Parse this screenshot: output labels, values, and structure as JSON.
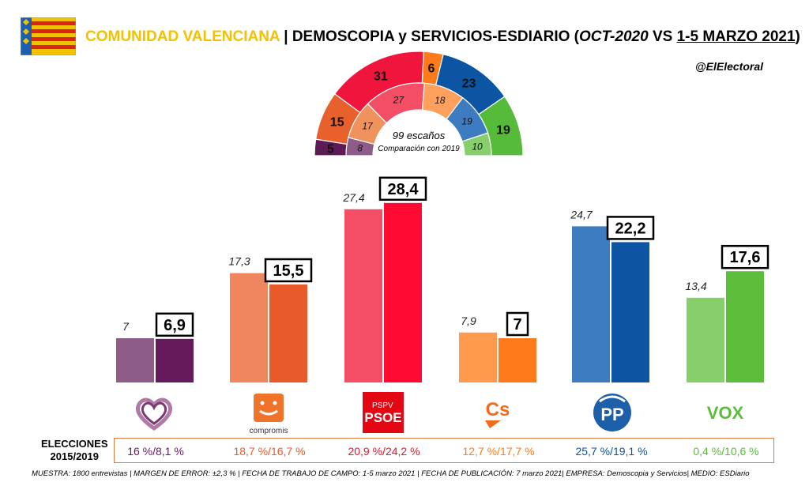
{
  "header": {
    "region": "COMUNIDAD VALENCIANA",
    "separator": "| DEMOSCOPIA y SERVICIOS-ESDIARIO",
    "paren_open": "(",
    "period_old": "OCT-2020",
    "vs": "VS",
    "period_new": "1-5 MARZO 2021",
    "paren_close": ")",
    "handle": "@ElElectoral"
  },
  "chart_data": [
    {
      "type": "pie",
      "subtype": "hemicycle",
      "center_text": "99 escaños",
      "center_subtext": "Comparación con 2019",
      "outer_ring": [
        {
          "party": "Podemos",
          "seats": 5,
          "color": "#5e1a54"
        },
        {
          "party": "Compromís",
          "seats": 15,
          "color": "#e8602c"
        },
        {
          "party": "PSOE",
          "seats": 31,
          "color": "#f0153c"
        },
        {
          "party": "Cs",
          "seats": 6,
          "color": "#ff7a1a"
        },
        {
          "party": "PP",
          "seats": 23,
          "color": "#0b55a3"
        },
        {
          "party": "VOX",
          "seats": 19,
          "color": "#57bb3a"
        }
      ],
      "inner_ring": [
        {
          "party": "Podemos",
          "seats": 8,
          "color": "#8e5c88"
        },
        {
          "party": "Compromís",
          "seats": 17,
          "color": "#f0925e"
        },
        {
          "party": "PSOE",
          "seats": 27,
          "color": "#f44d66"
        },
        {
          "party": "Cs",
          "seats": 18,
          "color": "#ffa05c"
        },
        {
          "party": "PP",
          "seats": 19,
          "color": "#3d7cc0"
        },
        {
          "party": "VOX",
          "seats": 10,
          "color": "#86cf6a"
        }
      ]
    },
    {
      "type": "bar",
      "categories": [
        "Podemos",
        "Compromís",
        "PSOE",
        "Cs",
        "PP",
        "VOX"
      ],
      "series": [
        {
          "values": [
            7,
            17.3,
            27.4,
            7.9,
            24.7,
            13.4
          ],
          "labels": [
            "7",
            "17,3",
            "27,4",
            "7,9",
            "24,7",
            "13,4"
          ],
          "colors": [
            "#8e5c88",
            "#f0865e",
            "#f44d66",
            "#ff9a4d",
            "#3d7cc0",
            "#86cf6a"
          ]
        },
        {
          "values": [
            6.9,
            15.5,
            28.4,
            7,
            22.2,
            17.6
          ],
          "labels": [
            "6,9",
            "15,5",
            "28,4",
            "7",
            "22,2",
            "17,6"
          ],
          "colors": [
            "#651a5c",
            "#e85a2a",
            "#ff0a33",
            "#ff7a1a",
            "#0b55a3",
            "#5bbd3a"
          ]
        }
      ],
      "ylim": [
        0,
        30
      ]
    }
  ],
  "logos": {
    "compromis_label": "compromis",
    "psoe_top": "PSPV",
    "psoe_bottom": "PSOE",
    "cs_label": "Cs",
    "pp_label": "PP",
    "vox_label": "VOX"
  },
  "elections": {
    "label_line1": "ELECCIONES",
    "label_line2": "2015/2019",
    "values": [
      {
        "text": "16 %/8,1 %",
        "color": "#651a5c"
      },
      {
        "text": "18,7 %/16,7 %",
        "color": "#e85a2a"
      },
      {
        "text": "20,9 %/24,2 %",
        "color": "#e8122e"
      },
      {
        "text": "12,7 %/17,7 %",
        "color": "#ff7a1a"
      },
      {
        "text": "25,7 %/19,1 %",
        "color": "#0b55a3"
      },
      {
        "text": "0,4 %/10,6 %",
        "color": "#57bb3a"
      }
    ]
  },
  "footnote": "MUESTRA: 1800 entrevistas | MARGEN DE ERROR: ±2,3 % | FECHA DE TRABAJO DE CAMPO: 1-5 marzo 2021 | FECHA DE PUBLICACIÓN: 7 marzo 2021| EMPRESA: Demoscopia y Servicios| MEDIO: ESDiario"
}
